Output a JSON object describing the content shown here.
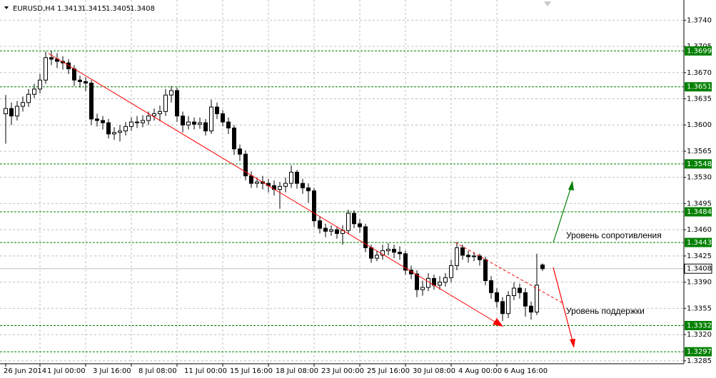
{
  "chart_data": {
    "type": "candlestick",
    "title": "EURUSD,H4",
    "categories": [
      "26 Jun 2014",
      null,
      null,
      null,
      null,
      null,
      "1 Jul 00:00",
      null,
      null,
      null,
      null,
      null,
      null,
      null,
      "3 Jul 16:00",
      null,
      null,
      null,
      null,
      null,
      null,
      null,
      "8 Jul 08:00",
      null,
      null,
      null,
      null,
      null,
      null,
      null,
      "11 Jul 00:00",
      null,
      null,
      null,
      null,
      null,
      null,
      null,
      "15 Jul 16:00",
      null,
      null,
      null,
      null,
      null,
      null,
      null,
      "18 Jul 08:00",
      null,
      null,
      null,
      null,
      null,
      null,
      null,
      "23 Jul 00:00",
      null,
      null,
      null,
      null,
      null,
      null,
      null,
      "25 Jul 16:00",
      null,
      null,
      null,
      null,
      null,
      null,
      null,
      "30 Jul 08:00",
      null,
      null,
      null,
      null,
      null,
      null,
      null,
      "4 Aug 00:00",
      null,
      null,
      null,
      null,
      null,
      null,
      null,
      "6 Aug 16:00",
      null,
      null,
      null,
      null,
      null,
      null,
      null,
      null
    ],
    "open": [
      1.3615,
      1.3622,
      1.3612,
      1.3625,
      1.363,
      1.3641,
      1.3648,
      1.366,
      1.369,
      1.3688,
      1.3685,
      1.3683,
      1.3675,
      1.366,
      1.3658,
      1.3656,
      1.3608,
      1.3606,
      1.3603,
      1.3588,
      1.359,
      1.3592,
      1.3598,
      1.3604,
      1.3603,
      1.3606,
      1.3612,
      1.3615,
      1.3618,
      1.364,
      1.3646,
      1.3612,
      1.36,
      1.3604,
      1.3601,
      1.3603,
      1.3592,
      1.3624,
      1.3615,
      1.3604,
      1.3596,
      1.3568,
      1.3561,
      1.3532,
      1.3522,
      1.3524,
      1.3522,
      1.3519,
      1.3514,
      1.3518,
      1.3522,
      1.3537,
      1.3522,
      1.3516,
      1.3512,
      1.3472,
      1.3462,
      1.3458,
      1.346,
      1.3455,
      1.3459,
      1.3482,
      1.3468,
      1.3464,
      1.3436,
      1.3422,
      1.3426,
      1.3432,
      1.3434,
      1.343,
      1.3428,
      1.3406,
      1.3401,
      1.338,
      1.3383,
      1.3395,
      1.3386,
      1.339,
      1.3396,
      1.3412,
      1.3436,
      1.3426,
      1.3424,
      1.3425,
      1.342,
      1.3392,
      1.3376,
      1.3364,
      1.3348,
      1.3372,
      1.3382,
      1.3376,
      1.3358,
      1.335,
      1.3413
    ],
    "high": [
      1.364,
      1.363,
      1.3632,
      1.3638,
      1.3648,
      1.3655,
      1.3668,
      1.3698,
      1.3699,
      1.3696,
      1.3692,
      1.3688,
      1.368,
      1.3666,
      1.3664,
      1.366,
      1.3615,
      1.3612,
      1.3608,
      1.3597,
      1.36,
      1.3604,
      1.361,
      1.3612,
      1.3613,
      1.3618,
      1.3622,
      1.3626,
      1.3648,
      1.3652,
      1.365,
      1.3618,
      1.3612,
      1.361,
      1.361,
      1.3608,
      1.3634,
      1.363,
      1.362,
      1.361,
      1.36,
      1.3574,
      1.3566,
      1.3538,
      1.353,
      1.3532,
      1.3528,
      1.3526,
      1.3524,
      1.353,
      1.3546,
      1.354,
      1.3528,
      1.3522,
      1.3516,
      1.3478,
      1.3468,
      1.3466,
      1.3464,
      1.3466,
      1.3487,
      1.3486,
      1.3474,
      1.3468,
      1.344,
      1.3432,
      1.344,
      1.3442,
      1.344,
      1.3438,
      1.3432,
      1.3412,
      1.3406,
      1.3392,
      1.3402,
      1.34,
      1.3398,
      1.3402,
      1.342,
      1.3443,
      1.344,
      1.3432,
      1.343,
      1.3428,
      1.3424,
      1.3398,
      1.3382,
      1.337,
      1.3378,
      1.339,
      1.3388,
      1.3382,
      1.3364,
      1.3428,
      1.3415
    ],
    "low": [
      1.3575,
      1.36,
      1.3606,
      1.3618,
      1.3624,
      1.3636,
      1.3642,
      1.3655,
      1.368,
      1.3676,
      1.3674,
      1.3668,
      1.3652,
      1.365,
      1.3645,
      1.36,
      1.3598,
      1.3594,
      1.3582,
      1.358,
      1.3578,
      1.3586,
      1.3592,
      1.3596,
      1.3597,
      1.36,
      1.3606,
      1.3605,
      1.3612,
      1.363,
      1.3604,
      1.359,
      1.3594,
      1.3594,
      1.3595,
      1.3586,
      1.3588,
      1.3608,
      1.3598,
      1.3588,
      1.356,
      1.3552,
      1.3526,
      1.3516,
      1.3516,
      1.3514,
      1.351,
      1.3506,
      1.3488,
      1.351,
      1.3516,
      1.3515,
      1.3508,
      1.3496,
      1.3464,
      1.3455,
      1.345,
      1.3452,
      1.3448,
      1.344,
      1.3454,
      1.3462,
      1.3456,
      1.343,
      1.3416,
      1.3418,
      1.342,
      1.3426,
      1.3422,
      1.342,
      1.34,
      1.3394,
      1.337,
      1.3372,
      1.3378,
      1.338,
      1.338,
      1.3384,
      1.339,
      1.3406,
      1.342,
      1.3416,
      1.3418,
      1.3412,
      1.3386,
      1.3368,
      1.3356,
      1.3338,
      1.3342,
      1.3366,
      1.3368,
      1.3344,
      1.334,
      1.3346,
      1.3405
    ],
    "close": [
      1.3622,
      1.3612,
      1.3625,
      1.363,
      1.3641,
      1.3648,
      1.366,
      1.369,
      1.3688,
      1.3685,
      1.3683,
      1.3675,
      1.366,
      1.3658,
      1.3656,
      1.3608,
      1.3606,
      1.3603,
      1.3588,
      1.359,
      1.3592,
      1.3598,
      1.3604,
      1.3603,
      1.3606,
      1.3612,
      1.3615,
      1.3618,
      1.364,
      1.3646,
      1.3612,
      1.36,
      1.3604,
      1.3601,
      1.3603,
      1.3592,
      1.3624,
      1.3615,
      1.3604,
      1.3596,
      1.3568,
      1.3561,
      1.3532,
      1.3522,
      1.3524,
      1.3522,
      1.3519,
      1.3514,
      1.3518,
      1.3522,
      1.3537,
      1.3522,
      1.3516,
      1.3512,
      1.3472,
      1.3462,
      1.3458,
      1.346,
      1.3455,
      1.3459,
      1.3482,
      1.3468,
      1.3464,
      1.3436,
      1.3422,
      1.3426,
      1.3432,
      1.3434,
      1.343,
      1.3428,
      1.3406,
      1.3401,
      1.338,
      1.3383,
      1.3395,
      1.3386,
      1.339,
      1.3396,
      1.3412,
      1.3436,
      1.3426,
      1.3424,
      1.3425,
      1.342,
      1.3392,
      1.3376,
      1.3364,
      1.3348,
      1.3372,
      1.3382,
      1.3376,
      1.3358,
      1.335,
      1.3386,
      1.3408
    ],
    "ylim": [
      1.3281,
      1.3767
    ],
    "yticks": [
      {
        "value": 1.374,
        "label": "1.3740"
      },
      1.3705,
      {
        "value": 1.367,
        "label": "1.3670"
      },
      1.3635,
      {
        "value": 1.36,
        "label": "1.3600"
      },
      1.3565,
      {
        "value": 1.353,
        "label": "1.3530"
      },
      1.3495,
      {
        "value": 1.346,
        "label": "1.3460"
      },
      1.3425,
      {
        "value": 1.339,
        "label": "1.3390"
      },
      1.3355,
      {
        "value": 1.332,
        "label": "1.3320"
      },
      1.3285
    ],
    "grid": true,
    "levels": {
      "color": "#008000",
      "values": [
        1.3699,
        1.3651,
        1.3548,
        1.3484,
        1.3443,
        1.3332,
        1.3297
      ]
    },
    "annotations": [
      "Уровень сопротивления",
      "Уровень поддержки"
    ]
  }
}
